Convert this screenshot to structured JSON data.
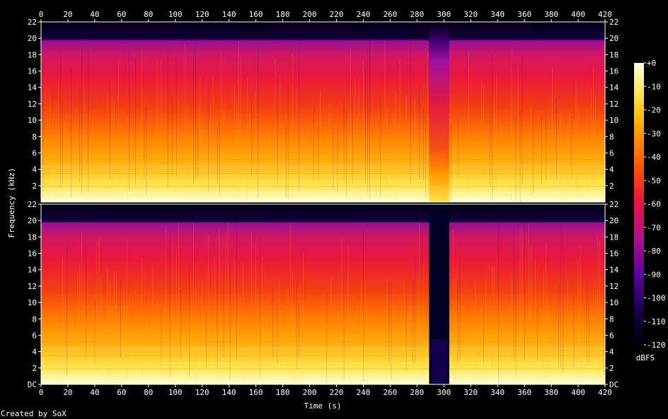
{
  "chart_data": {
    "type": "heatmap",
    "xlabel": "Time (s)",
    "ylabel": "Frequency (kHz)",
    "xlim": [
      0,
      420
    ],
    "ylim": [
      0,
      22
    ],
    "x_ticks": [
      "0",
      "20",
      "40",
      "60",
      "80",
      "100",
      "120",
      "140",
      "160",
      "180",
      "200",
      "220",
      "240",
      "260",
      "280",
      "300",
      "320",
      "340",
      "360",
      "380",
      "400",
      "420"
    ],
    "y_ticks_top": [
      "2",
      "4",
      "6",
      "8",
      "10",
      "12",
      "14",
      "16",
      "18",
      "20",
      "22"
    ],
    "y_ticks_bottom": [
      "DC",
      "2",
      "4",
      "6",
      "8",
      "10",
      "12",
      "14",
      "16",
      "18",
      "20",
      "22"
    ],
    "channels": 2,
    "colorbar": {
      "label": "dBFS",
      "ticks": [
        "+0",
        "-10",
        "-20",
        "-30",
        "-40",
        "-50",
        "-60",
        "-70",
        "-80",
        "-90",
        "-100",
        "-110",
        "-120"
      ],
      "min": -120,
      "max": 0
    },
    "features": {
      "cutoff_khz": 20,
      "quiet_segment_s": [
        289,
        304
      ]
    },
    "footer": "Created by SoX"
  },
  "colors": {
    "background": "#000000",
    "text": "#ffffff",
    "cmap": [
      "#000000",
      "#16004a",
      "#5a00a0",
      "#b0108a",
      "#e8183a",
      "#ff5a00",
      "#ffa000",
      "#ffe040",
      "#ffffe0"
    ]
  }
}
